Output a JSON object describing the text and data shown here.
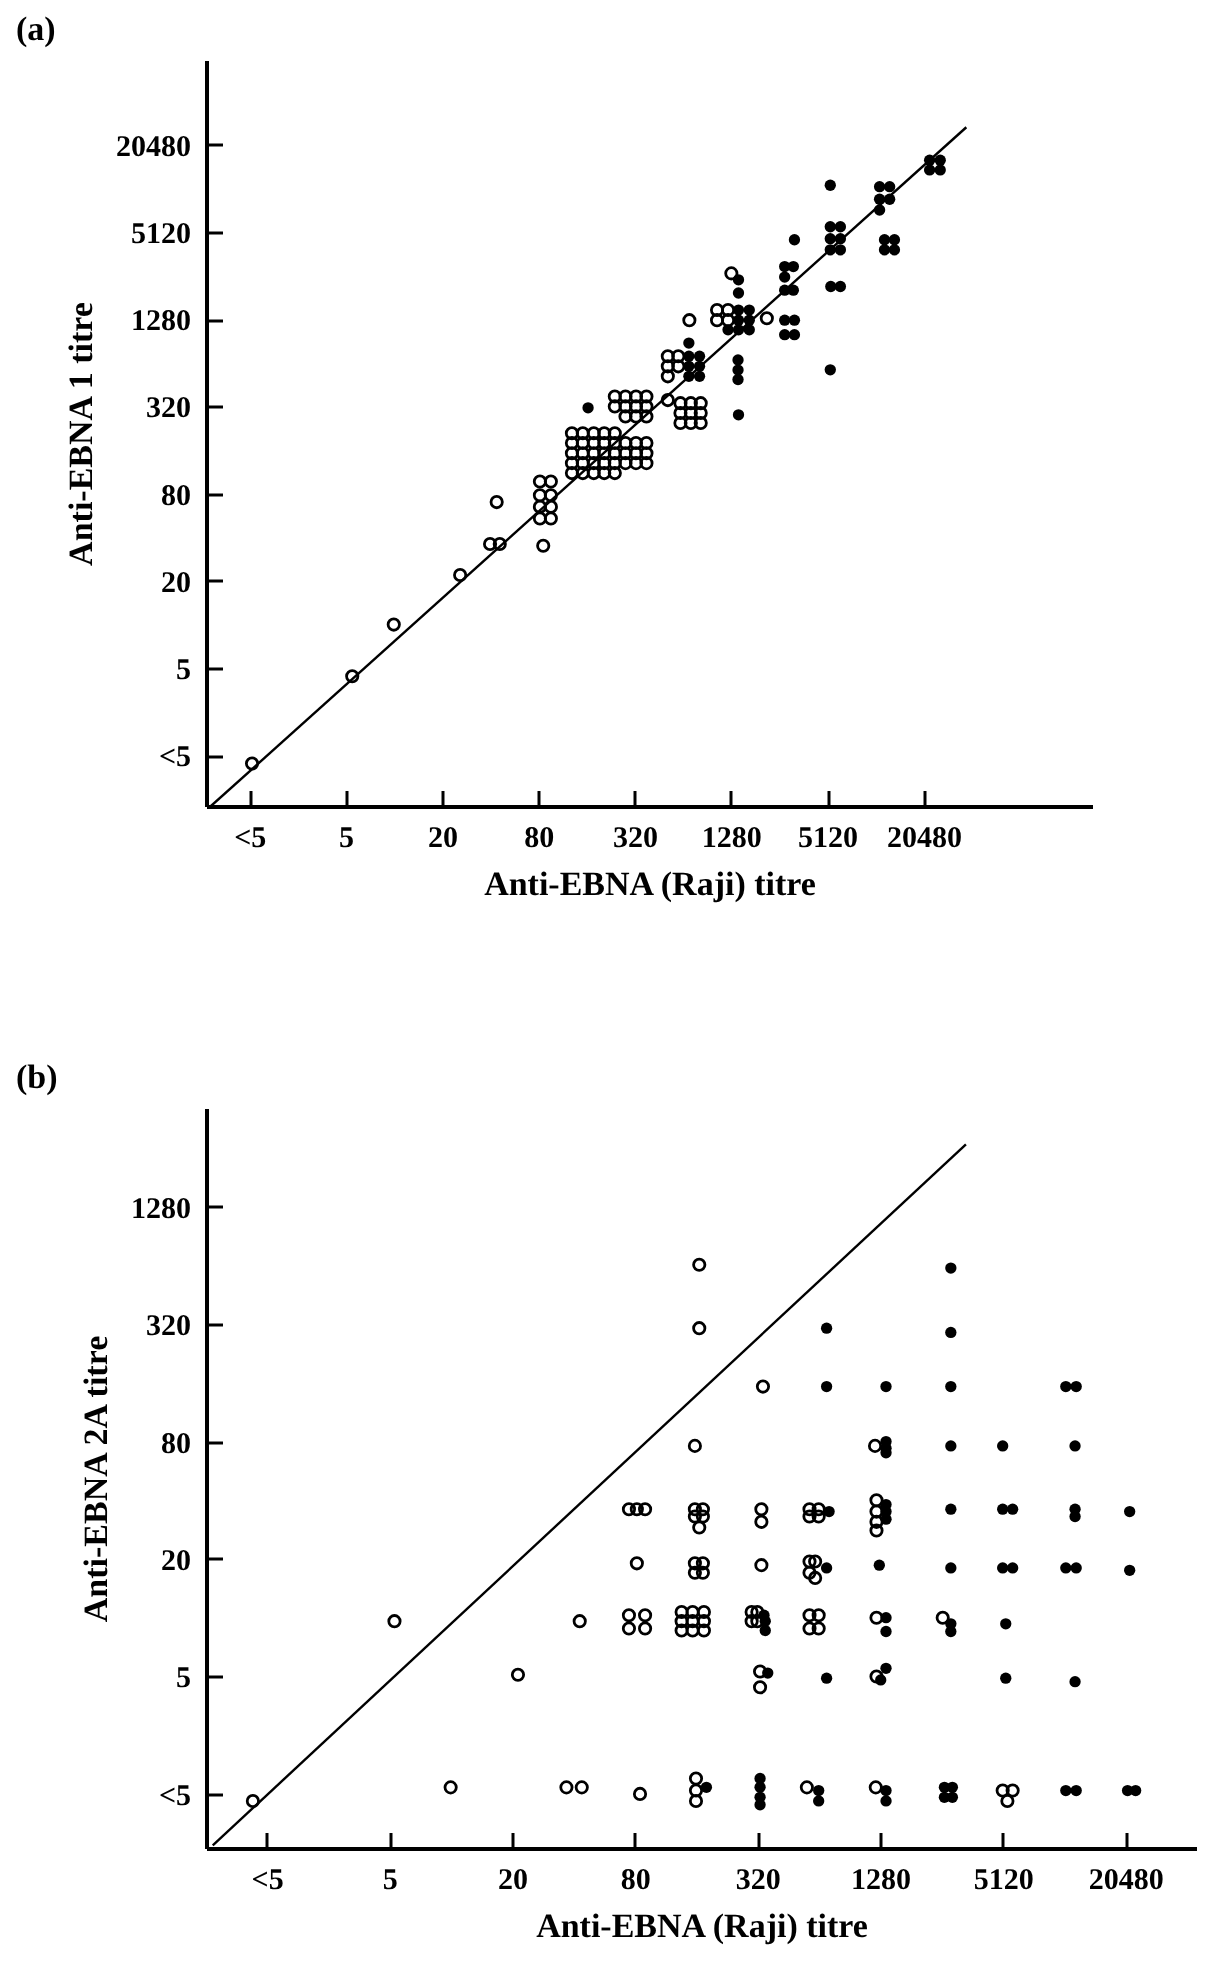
{
  "chart_data": [
    {
      "type": "scatter",
      "title": "(a)",
      "xlabel": "Anti-EBNA (Raji) titre",
      "ylabel": "Anti-EBNA 1 titre",
      "log": "xy",
      "marker": "circle",
      "xlim": [
        0.67,
        232000
      ],
      "ylim": [
        0.56,
        78600
      ],
      "xticks": [
        {
          "value": 1.25,
          "label": "<5"
        },
        5,
        20,
        80,
        320,
        1280,
        5120,
        20480
      ],
      "yticks": [
        {
          "value": 1.25,
          "label": "<5"
        },
        5,
        20,
        80,
        320,
        1280,
        5120,
        20480
      ],
      "series": [
        {
          "type": "line",
          "marker": "none",
          "color": "#000000",
          "x": [
            0.72,
            38000
          ],
          "values": [
            0.56,
            27000
          ]
        },
        {
          "color": "#000000",
          "x": [
            1.3,
            5.5,
            10,
            26,
            40,
            46,
            44,
            86,
            82,
            96,
            82,
            96,
            82,
            96,
            82,
            96,
            130,
            152,
            178,
            207,
            241,
            130,
            152,
            178,
            207,
            241,
            130,
            152,
            178,
            207,
            241,
            130,
            152,
            178,
            207,
            241,
            130,
            152,
            178,
            207,
            241,
            241,
            281,
            327,
            380,
            241,
            281,
            327,
            380,
            281,
            327,
            380,
            281,
            327,
            380,
            281,
            327,
            380,
            281,
            327,
            380,
            517,
            601,
            517,
            601,
            517,
            517,
            620,
            720,
            830,
            620,
            720,
            830,
            620,
            720,
            830,
            705,
            1290,
            1050,
            1050,
            1230,
            1230,
            2150
          ],
          "values": [
            1.1,
            4.4,
            10,
            22,
            36,
            36,
            70,
            35,
            97,
            97,
            78,
            78,
            65,
            65,
            54,
            54,
            209,
            209,
            209,
            209,
            209,
            179,
            179,
            179,
            179,
            179,
            152,
            152,
            152,
            152,
            152,
            130,
            130,
            130,
            130,
            130,
            111,
            111,
            111,
            111,
            111,
            375,
            375,
            375,
            375,
            320,
            320,
            320,
            320,
            273,
            273,
            273,
            179,
            179,
            179,
            152,
            152,
            152,
            130,
            130,
            130,
            710,
            710,
            605,
            605,
            516,
            354,
            337,
            337,
            337,
            288,
            288,
            288,
            246,
            246,
            246,
            1260,
            2650,
            1480,
            1260,
            1480,
            1260,
            1300
          ]
        },
        {
          "marker": "circle",
          "color": "#000000",
          "x": [
            164,
            700,
            816,
            700,
            816,
            700,
            816,
            700,
            1430,
            1670,
            1430,
            1670,
            1430,
            1670,
            1230,
            1430,
            1430,
            1420,
            1420,
            1420,
            1430,
            2780,
            2780,
            2780,
            3150,
            3150,
            2780,
            3200,
            2780,
            3200,
            3200,
            5360,
            5360,
            6200,
            5360,
            6200,
            5360,
            6200,
            5400,
            6200,
            5360,
            10900,
            12600,
            10900,
            12600,
            10900,
            11700,
            13500,
            11700,
            13500,
            22400,
            26100,
            22400,
            26100
          ],
          "values": [
            313,
            710,
            710,
            605,
            605,
            516,
            516,
            875,
            1480,
            1480,
            1260,
            1260,
            1080,
            1080,
            1080,
            2390,
            1940,
            670,
            570,
            490,
            280,
            2950,
            2500,
            2030,
            2950,
            2030,
            1260,
            1260,
            1000,
            1000,
            4520,
            10750,
            5560,
            5560,
            4600,
            4600,
            3850,
            3850,
            2150,
            2150,
            572,
            10500,
            10500,
            8600,
            8600,
            7250,
            4520,
            4520,
            3850,
            3850,
            16000,
            16000,
            13700,
            13700
          ]
        }
      ]
    },
    {
      "type": "scatter",
      "title": "(b)",
      "xlabel": "Anti-EBNA (Raji) titre",
      "ylabel": "Anti-EBNA 2A titre",
      "log": "xy",
      "marker": "circle",
      "xlim": [
        0.63,
        45500
      ],
      "ylim": [
        0.66,
        4100
      ],
      "xticks": [
        {
          "value": 1.25,
          "label": "<5"
        },
        5,
        20,
        80,
        320,
        1280,
        5120,
        20480
      ],
      "yticks": [
        {
          "value": 1.25,
          "label": "<5"
        },
        5,
        20,
        80,
        320,
        1280
      ],
      "series": [
        {
          "type": "line",
          "marker": "none",
          "color": "#000000",
          "x": [
            0.68,
            3380
          ],
          "values": [
            0.68,
            2670
          ]
        },
        {
          "color": "#000000",
          "x": [
            1.07,
            5.3,
            10,
            21.4,
            37,
            44,
            43,
            85,
            75,
            82,
            90,
            82,
            75,
            90,
            75,
            90,
            166,
            166,
            158,
            158,
            173,
            158,
            173,
            166,
            158,
            173,
            158,
            173,
            136,
            154,
            175,
            136,
            154,
            175,
            136,
            154,
            175,
            341,
            335,
            335,
            335,
            300,
            320,
            300,
            320,
            330,
            330,
            160,
            160,
            160,
            577,
            640,
            577,
            640,
            577,
            615,
            577,
            615,
            577,
            640,
            577,
            640,
            560,
            1210,
            1230,
            1230,
            1230,
            1230,
            1230,
            1230,
            1220,
            2600,
            5120,
            5730,
            5400
          ],
          "values": [
            1.15,
            9.6,
            1.35,
            5.1,
            1.35,
            1.35,
            9.6,
            1.25,
            36,
            36,
            36,
            19,
            10.3,
            10.3,
            8.8,
            8.8,
            645,
            305,
            76,
            36,
            36,
            33,
            33,
            29,
            19,
            19,
            17,
            17,
            10.7,
            10.7,
            10.7,
            9.6,
            9.6,
            9.6,
            8.6,
            8.6,
            8.6,
            153,
            18.6,
            36,
            31,
            10.7,
            10.7,
            9.6,
            9.6,
            5.3,
            4.4,
            1.5,
            1.3,
            1.15,
            36,
            36,
            33,
            33,
            19.4,
            19.4,
            17,
            16,
            10.3,
            10.3,
            8.8,
            8.8,
            1.35,
            76,
            40,
            35,
            31,
            28,
            10,
            5,
            1.35,
            10,
            1.3,
            1.3,
            1.15
          ]
        },
        {
          "marker": "circle",
          "color": "#000000",
          "x": [
            350,
            350,
            345,
            360,
            330,
            330,
            330,
            330,
            180,
            720,
            700,
            700,
            640,
            640,
            700,
            700,
            1370,
            1370,
            1370,
            1370,
            1370,
            1370,
            1370,
            1270,
            1370,
            1370,
            1290,
            1370,
            1370,
            1370,
            2850,
            2850,
            2850,
            2850,
            2850,
            2850,
            2850,
            2850,
            2650,
            2900,
            2650,
            2900,
            5120,
            5120,
            5730,
            5120,
            5730,
            5300,
            5300,
            10450,
            11750,
            11600,
            11600,
            11600,
            10450,
            11750,
            11600,
            10450,
            11750,
            21500,
            21500,
            21000,
            23000
          ],
          "values": [
            9.6,
            8.6,
            10.3,
            5.2,
            1.5,
            1.35,
            1.2,
            1.1,
            1.35,
            35,
            18,
            4.9,
            1.3,
            1.15,
            305,
            153,
            153,
            80,
            74,
            70,
            38,
            35,
            32,
            18.6,
            10,
            8.5,
            4.8,
            5.5,
            1.3,
            1.15,
            620,
            290,
            153,
            76,
            36,
            18,
            9.3,
            8.5,
            1.35,
            1.35,
            1.2,
            1.2,
            76,
            36,
            36,
            18,
            18,
            9.3,
            4.9,
            153,
            153,
            76,
            36,
            33,
            18,
            18,
            4.7,
            1.3,
            1.3,
            35,
            17.5,
            1.3,
            1.3
          ]
        }
      ]
    }
  ]
}
